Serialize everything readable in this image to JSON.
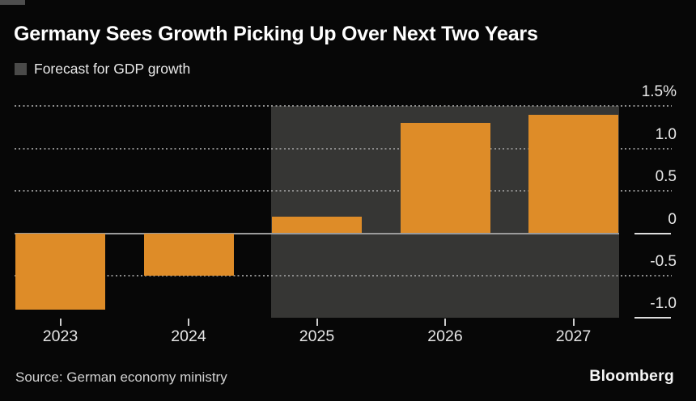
{
  "header": {
    "title": "Germany Sees Growth Picking Up Over Next Two Years",
    "legend_label": "Forecast for GDP growth",
    "legend_swatch_color": "#4a4a49"
  },
  "chart_data": {
    "type": "bar",
    "categories": [
      "2023",
      "2024",
      "2025",
      "2026",
      "2027"
    ],
    "values": [
      -0.9,
      -0.5,
      0.2,
      1.3,
      1.4
    ],
    "series_name": "GDP growth",
    "title": "Germany Sees Growth Picking Up Over Next Two Years",
    "legend": "Forecast for GDP growth",
    "xlabel": "",
    "ylabel": "",
    "unit": "%",
    "ylim": [
      -1.0,
      1.5
    ],
    "y_ticks": [
      1.5,
      1.0,
      0.5,
      0,
      -0.5,
      -1.0
    ],
    "y_tick_labels": [
      "1.5%",
      "1.0",
      "0.5",
      "0",
      "-0.5",
      "-1.0"
    ],
    "grid": "dotted horizontal gridlines, solid zero line",
    "legend_position": "top-left",
    "axis_side": "right",
    "forecast_band": {
      "from_category": "2025",
      "to_category": "2027"
    },
    "colors": {
      "bar": "#de8c28",
      "forecast_band": "#363634",
      "background": "#070707",
      "gridline": "#8d8d8d",
      "zero_line": "#9b9b9b",
      "text": "#eaeaea"
    }
  },
  "footer": {
    "source": "Source: German economy ministry",
    "brand": "Bloomberg"
  }
}
